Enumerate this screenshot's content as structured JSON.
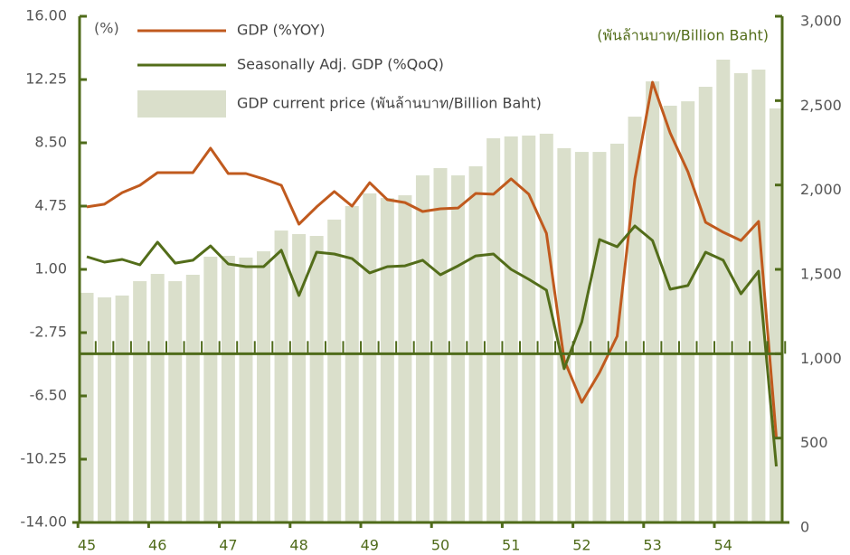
{
  "chart_data": {
    "type": "combo",
    "ylabel": "(%)",
    "y2label": "(พันล้านบาท/Billion Baht)",
    "categories": [
      "45",
      null,
      null,
      null,
      "46",
      null,
      null,
      null,
      "47",
      null,
      null,
      null,
      "48",
      null,
      null,
      null,
      "49",
      null,
      null,
      null,
      "50",
      null,
      null,
      null,
      "51",
      null,
      null,
      null,
      "52",
      null,
      null,
      null,
      "53",
      null,
      null,
      null,
      "54",
      null,
      null,
      null
    ],
    "series": [
      {
        "name": "GDP (%YOY)",
        "type": "line",
        "color": "#c05a1e",
        "axis": "y",
        "values": [
          4.7,
          4.86,
          5.55,
          5.98,
          6.73,
          6.73,
          6.73,
          8.18,
          6.68,
          6.68,
          6.36,
          5.98,
          3.68,
          4.7,
          5.61,
          4.75,
          6.14,
          5.13,
          4.96,
          4.43,
          4.59,
          4.64,
          5.5,
          5.45,
          6.36,
          5.45,
          3.14,
          -4.36,
          -6.88,
          -5.11,
          -2.96,
          6.36,
          12.09,
          9.09,
          6.79,
          3.79,
          3.2,
          2.71,
          3.84,
          -8.96
        ]
      },
      {
        "name": "Seasonally Adj. GDP (%QoQ)",
        "type": "line",
        "color": "#536d1a",
        "axis": "y",
        "values": [
          1.75,
          1.43,
          1.59,
          1.27,
          2.61,
          1.37,
          1.54,
          2.39,
          1.32,
          1.16,
          1.16,
          2.13,
          -0.55,
          2.02,
          1.91,
          1.64,
          0.79,
          1.16,
          1.21,
          1.54,
          0.68,
          1.21,
          1.8,
          1.91,
          1.0,
          0.41,
          -0.23,
          -4.89,
          -2.11,
          2.77,
          2.34,
          3.57,
          2.71,
          -0.18,
          0.04,
          2.02,
          1.54,
          -0.45,
          0.89,
          -10.68
        ]
      },
      {
        "name": "GDP current price (พันล้านบาท/Billion Baht)",
        "type": "bar",
        "color": "#dadfcb",
        "axis": "y2",
        "values": [
          1361,
          1334,
          1345,
          1430,
          1473,
          1430,
          1468,
          1575,
          1580,
          1570,
          1607,
          1730,
          1709,
          1698,
          1795,
          1875,
          1950,
          1923,
          1939,
          2057,
          2100,
          2057,
          2111,
          2277,
          2288,
          2293,
          2304,
          2218,
          2196,
          2196,
          2245,
          2405,
          2614,
          2470,
          2496,
          2582,
          2743,
          2663,
          2684,
          2454
        ]
      }
    ],
    "ylim": [
      -14,
      16
    ],
    "yticks": [
      {
        "value": -14,
        "label": "-14.00"
      },
      {
        "value": -10.25,
        "label": "-10.25"
      },
      {
        "value": -6.5,
        "label": "-6.50"
      },
      {
        "value": -2.75,
        "label": "-2.75"
      },
      {
        "value": 1,
        "label": "1.00"
      },
      {
        "value": 4.75,
        "label": "4.75"
      },
      {
        "value": 8.5,
        "label": "8.50"
      },
      {
        "value": 12.25,
        "label": "12.25"
      },
      {
        "value": 16,
        "label": "16.00"
      }
    ],
    "y2lim": [
      0,
      3000
    ],
    "y2ticks": [
      0,
      500,
      {
        "value": 1000,
        "label": "1,000"
      },
      {
        "value": 1500,
        "label": "1,500"
      },
      {
        "value": 2000,
        "label": "2,000"
      },
      {
        "value": 2500,
        "label": "2,500"
      },
      {
        "value": 3000,
        "label": "3,000"
      }
    ],
    "hline": {
      "value": 1000,
      "axis": "y2"
    },
    "legend": "upper-left"
  }
}
